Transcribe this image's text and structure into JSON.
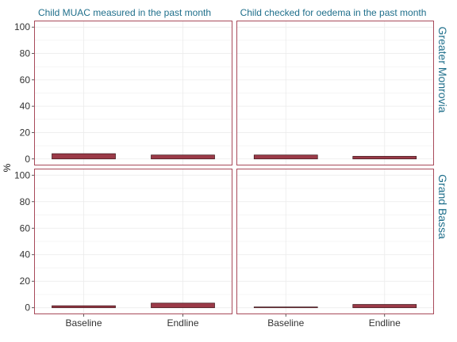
{
  "chart_data": {
    "type": "bar",
    "ylabel": "%",
    "ylim": [
      0,
      100
    ],
    "yticks": [
      0,
      20,
      40,
      60,
      80,
      100
    ],
    "categories": [
      "Baseline",
      "Endline"
    ],
    "columns": [
      "Child MUAC measured in the past month",
      "Child checked for oedema in the past month"
    ],
    "rows": [
      "Greater Monrovia",
      "Grand Bassa"
    ],
    "panels": [
      {
        "row": "Greater Monrovia",
        "column": "Child MUAC measured in the past month",
        "values": [
          4,
          3
        ]
      },
      {
        "row": "Greater Monrovia",
        "column": "Child checked for oedema in the past month",
        "values": [
          3,
          2
        ]
      },
      {
        "row": "Grand Bassa",
        "column": "Child MUAC measured in the past month",
        "values": [
          1.5,
          3.5
        ]
      },
      {
        "row": "Grand Bassa",
        "column": "Child checked for oedema in the past month",
        "values": [
          0.3,
          2.5
        ]
      }
    ],
    "grid": true,
    "colors": {
      "bar_fill": "#9b3a48",
      "bar_stroke": "#3a1418",
      "panel_border": "#a84a5a",
      "strip_text": "#1f6f8b",
      "grid": "#ebebeb"
    }
  }
}
